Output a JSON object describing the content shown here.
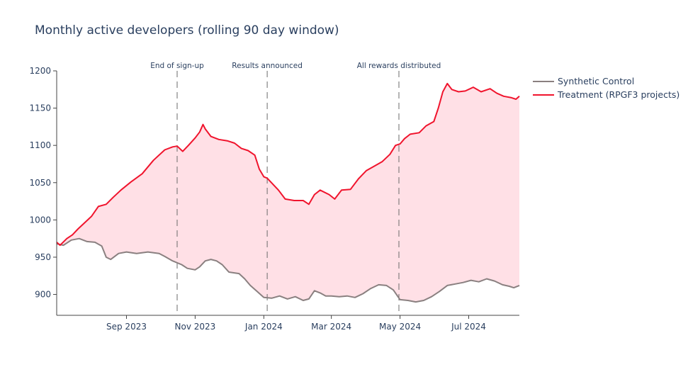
{
  "chart_data": {
    "type": "line",
    "title": "Monthly active developers (rolling 90 day window)",
    "xlabel": "",
    "ylabel": "",
    "xlim": [
      "2023-07-01",
      "2024-08-15"
    ],
    "ylim": [
      872,
      1200
    ],
    "yticks": [
      900,
      950,
      1000,
      1050,
      1100,
      1150,
      1200
    ],
    "xticks": [
      {
        "date": "2023-09-01",
        "label": "Sep 2023"
      },
      {
        "date": "2023-11-01",
        "label": "Nov 2023"
      },
      {
        "date": "2024-01-01",
        "label": "Jan 2024"
      },
      {
        "date": "2024-03-01",
        "label": "Mar 2024"
      },
      {
        "date": "2024-05-01",
        "label": "May 2024"
      },
      {
        "date": "2024-07-01",
        "label": "Jul 2024"
      }
    ],
    "annotations": [
      {
        "date": "2023-10-16",
        "label": "End of sign-up"
      },
      {
        "date": "2024-01-04",
        "label": "Results announced"
      },
      {
        "date": "2024-04-30",
        "label": "All rewards distributed"
      }
    ],
    "fill_between": {
      "color": "#ffe0e6"
    },
    "series": [
      {
        "name": "Synthetic Control",
        "color": "#8a8080",
        "points": [
          [
            "2023-07-01",
            968
          ],
          [
            "2023-07-07",
            966
          ],
          [
            "2023-07-14",
            973
          ],
          [
            "2023-07-21",
            975
          ],
          [
            "2023-07-28",
            971
          ],
          [
            "2023-08-04",
            970
          ],
          [
            "2023-08-10",
            965
          ],
          [
            "2023-08-14",
            950
          ],
          [
            "2023-08-18",
            947
          ],
          [
            "2023-08-25",
            955
          ],
          [
            "2023-09-01",
            957
          ],
          [
            "2023-09-10",
            955
          ],
          [
            "2023-09-20",
            957
          ],
          [
            "2023-09-30",
            955
          ],
          [
            "2023-10-05",
            951
          ],
          [
            "2023-10-12",
            945
          ],
          [
            "2023-10-20",
            940
          ],
          [
            "2023-10-25",
            935
          ],
          [
            "2023-11-01",
            933
          ],
          [
            "2023-11-05",
            937
          ],
          [
            "2023-11-10",
            945
          ],
          [
            "2023-11-15",
            947
          ],
          [
            "2023-11-20",
            945
          ],
          [
            "2023-11-25",
            940
          ],
          [
            "2023-12-01",
            930
          ],
          [
            "2023-12-10",
            928
          ],
          [
            "2023-12-15",
            921
          ],
          [
            "2023-12-20",
            912
          ],
          [
            "2023-12-26",
            904
          ],
          [
            "2024-01-01",
            896
          ],
          [
            "2024-01-08",
            895
          ],
          [
            "2024-01-15",
            898
          ],
          [
            "2024-01-22",
            894
          ],
          [
            "2024-01-29",
            897
          ],
          [
            "2024-02-05",
            892
          ],
          [
            "2024-02-10",
            894
          ],
          [
            "2024-02-15",
            905
          ],
          [
            "2024-02-20",
            902
          ],
          [
            "2024-02-25",
            898
          ],
          [
            "2024-03-01",
            898
          ],
          [
            "2024-03-08",
            897
          ],
          [
            "2024-03-15",
            898
          ],
          [
            "2024-03-22",
            896
          ],
          [
            "2024-03-29",
            901
          ],
          [
            "2024-04-05",
            908
          ],
          [
            "2024-04-12",
            913
          ],
          [
            "2024-04-19",
            912
          ],
          [
            "2024-04-25",
            906
          ],
          [
            "2024-05-01",
            893
          ],
          [
            "2024-05-08",
            892
          ],
          [
            "2024-05-15",
            890
          ],
          [
            "2024-05-22",
            892
          ],
          [
            "2024-05-29",
            897
          ],
          [
            "2024-06-05",
            904
          ],
          [
            "2024-06-12",
            912
          ],
          [
            "2024-06-19",
            914
          ],
          [
            "2024-06-26",
            916
          ],
          [
            "2024-07-03",
            919
          ],
          [
            "2024-07-10",
            917
          ],
          [
            "2024-07-17",
            921
          ],
          [
            "2024-07-24",
            918
          ],
          [
            "2024-07-31",
            913
          ],
          [
            "2024-08-06",
            911
          ],
          [
            "2024-08-10",
            909
          ],
          [
            "2024-08-15",
            912
          ]
        ]
      },
      {
        "name": "Treatment (RPGF3 projects)",
        "color": "#f0142d",
        "points": [
          [
            "2023-07-01",
            970
          ],
          [
            "2023-07-04",
            966
          ],
          [
            "2023-07-10",
            975
          ],
          [
            "2023-07-15",
            980
          ],
          [
            "2023-07-20",
            988
          ],
          [
            "2023-07-25",
            995
          ],
          [
            "2023-08-01",
            1005
          ],
          [
            "2023-08-07",
            1018
          ],
          [
            "2023-08-14",
            1021
          ],
          [
            "2023-08-20",
            1030
          ],
          [
            "2023-08-27",
            1040
          ],
          [
            "2023-09-05",
            1051
          ],
          [
            "2023-09-15",
            1062
          ],
          [
            "2023-09-25",
            1080
          ],
          [
            "2023-10-05",
            1094
          ],
          [
            "2023-10-12",
            1098
          ],
          [
            "2023-10-16",
            1099
          ],
          [
            "2023-10-21",
            1092
          ],
          [
            "2023-10-26",
            1100
          ],
          [
            "2023-11-01",
            1110
          ],
          [
            "2023-11-05",
            1118
          ],
          [
            "2023-11-08",
            1128
          ],
          [
            "2023-11-10",
            1122
          ],
          [
            "2023-11-15",
            1112
          ],
          [
            "2023-11-22",
            1108
          ],
          [
            "2023-11-30",
            1106
          ],
          [
            "2023-12-06",
            1103
          ],
          [
            "2023-12-12",
            1096
          ],
          [
            "2023-12-18",
            1093
          ],
          [
            "2023-12-24",
            1087
          ],
          [
            "2023-12-28",
            1068
          ],
          [
            "2024-01-01",
            1058
          ],
          [
            "2024-01-04",
            1056
          ],
          [
            "2024-01-09",
            1048
          ],
          [
            "2024-01-14",
            1040
          ],
          [
            "2024-01-20",
            1028
          ],
          [
            "2024-01-28",
            1026
          ],
          [
            "2024-02-05",
            1026
          ],
          [
            "2024-02-10",
            1021
          ],
          [
            "2024-02-15",
            1034
          ],
          [
            "2024-02-20",
            1040
          ],
          [
            "2024-02-28",
            1034
          ],
          [
            "2024-03-04",
            1028
          ],
          [
            "2024-03-10",
            1040
          ],
          [
            "2024-03-18",
            1041
          ],
          [
            "2024-03-25",
            1055
          ],
          [
            "2024-04-01",
            1066
          ],
          [
            "2024-04-08",
            1072
          ],
          [
            "2024-04-15",
            1078
          ],
          [
            "2024-04-22",
            1088
          ],
          [
            "2024-04-27",
            1100
          ],
          [
            "2024-05-01",
            1102
          ],
          [
            "2024-05-05",
            1109
          ],
          [
            "2024-05-10",
            1115
          ],
          [
            "2024-05-18",
            1117
          ],
          [
            "2024-05-24",
            1126
          ],
          [
            "2024-05-31",
            1132
          ],
          [
            "2024-06-04",
            1150
          ],
          [
            "2024-06-08",
            1172
          ],
          [
            "2024-06-12",
            1183
          ],
          [
            "2024-06-16",
            1175
          ],
          [
            "2024-06-22",
            1172
          ],
          [
            "2024-06-28",
            1173
          ],
          [
            "2024-07-05",
            1178
          ],
          [
            "2024-07-12",
            1172
          ],
          [
            "2024-07-20",
            1176
          ],
          [
            "2024-07-26",
            1170
          ],
          [
            "2024-08-01",
            1166
          ],
          [
            "2024-08-08",
            1164
          ],
          [
            "2024-08-12",
            1162
          ],
          [
            "2024-08-15",
            1166
          ]
        ]
      }
    ]
  }
}
